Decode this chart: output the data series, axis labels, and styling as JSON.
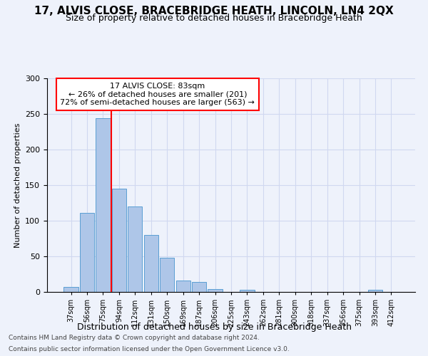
{
  "title1": "17, ALVIS CLOSE, BRACEBRIDGE HEATH, LINCOLN, LN4 2QX",
  "title2": "Size of property relative to detached houses in Bracebridge Heath",
  "xlabel": "Distribution of detached houses by size in Bracebridge Heath",
  "ylabel": "Number of detached properties",
  "footnote1": "Contains HM Land Registry data © Crown copyright and database right 2024.",
  "footnote2": "Contains public sector information licensed under the Open Government Licence v3.0.",
  "annotation_line1": "17 ALVIS CLOSE: 83sqm",
  "annotation_line2": "← 26% of detached houses are smaller (201)",
  "annotation_line3": "72% of semi-detached houses are larger (563) →",
  "bar_color": "#aec6e8",
  "bar_edge_color": "#5a9fd4",
  "marker_color": "red",
  "grid_color": "#d0d8f0",
  "background_color": "#eef2fb",
  "categories": [
    "37sqm",
    "56sqm",
    "75sqm",
    "94sqm",
    "112sqm",
    "131sqm",
    "150sqm",
    "169sqm",
    "187sqm",
    "206sqm",
    "225sqm",
    "243sqm",
    "262sqm",
    "281sqm",
    "300sqm",
    "318sqm",
    "337sqm",
    "356sqm",
    "375sqm",
    "393sqm",
    "412sqm"
  ],
  "values": [
    7,
    111,
    244,
    145,
    120,
    80,
    48,
    16,
    14,
    4,
    0,
    3,
    0,
    0,
    0,
    0,
    0,
    0,
    0,
    3,
    0
  ],
  "ylim": [
    0,
    300
  ],
  "yticks": [
    0,
    50,
    100,
    150,
    200,
    250,
    300
  ],
  "red_line_x": 2.5,
  "title1_fontsize": 11,
  "title2_fontsize": 9,
  "xlabel_fontsize": 9,
  "ylabel_fontsize": 8,
  "tick_fontsize": 8,
  "annot_fontsize": 8,
  "footnote_fontsize": 6.5
}
